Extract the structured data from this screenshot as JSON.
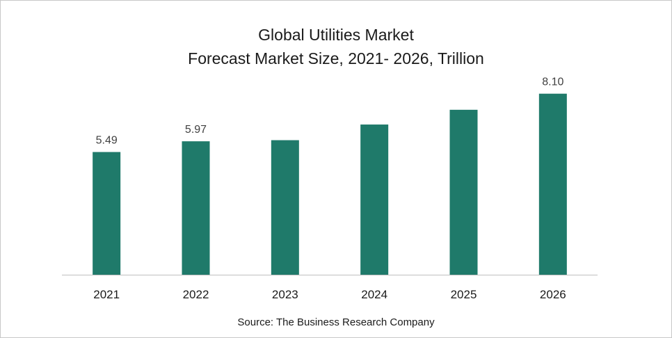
{
  "chart_data": {
    "type": "bar",
    "title": "Global Utilities Market",
    "subtitle": "Forecast Market Size, 2021- 2026, Trillion",
    "categories": [
      "2021",
      "2022",
      "2023",
      "2024",
      "2025",
      "2026"
    ],
    "values": [
      5.49,
      5.97,
      6.02,
      6.72,
      7.38,
      8.1
    ],
    "data_labels": [
      "5.49",
      "5.97",
      "",
      "",
      "",
      "8.10"
    ],
    "ylim": [
      0,
      8.9
    ],
    "grid": false,
    "legend": "none",
    "bar_color": "#1f7a6a",
    "source": "Source: The Business Research Company"
  }
}
